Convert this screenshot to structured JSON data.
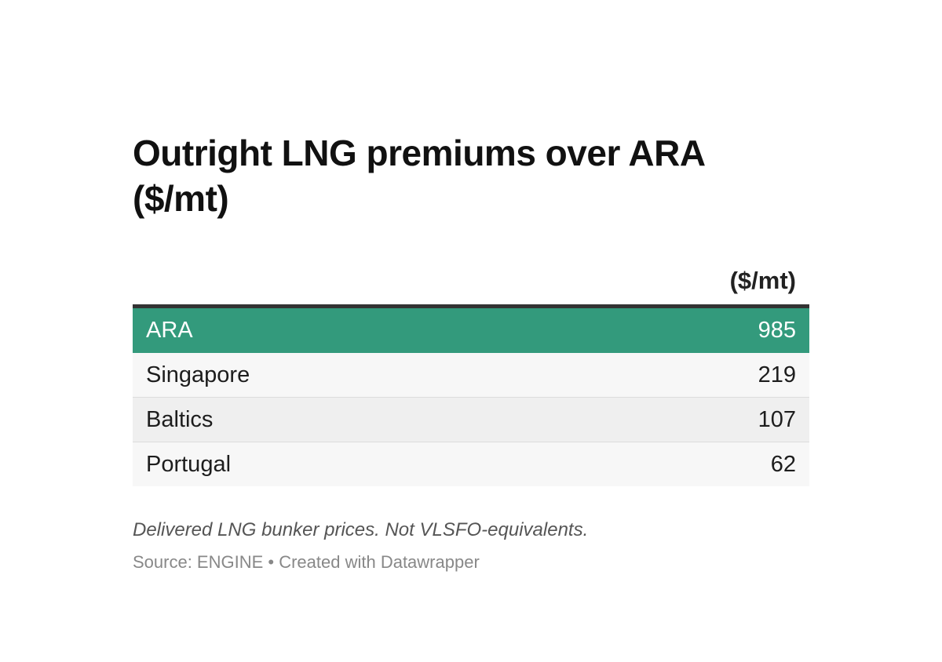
{
  "chart_data": {
    "type": "table",
    "title": "Outright LNG premiums over ARA ($/mt)",
    "column_header": "($/mt)",
    "rows": [
      {
        "label": "ARA",
        "value": "985"
      },
      {
        "label": "Singapore",
        "value": "219"
      },
      {
        "label": "Baltics",
        "value": "107"
      },
      {
        "label": "Portugal",
        "value": "62"
      }
    ],
    "highlight_row": "ARA",
    "notes": "Delivered LNG bunker prices. Not VLSFO-equivalents.",
    "source": "Source: ENGINE • Created with Datawrapper"
  },
  "colors": {
    "highlight": "#339a7c",
    "header_rule": "#333333",
    "row_odd": "#f7f7f7",
    "row_even": "#efefef"
  }
}
